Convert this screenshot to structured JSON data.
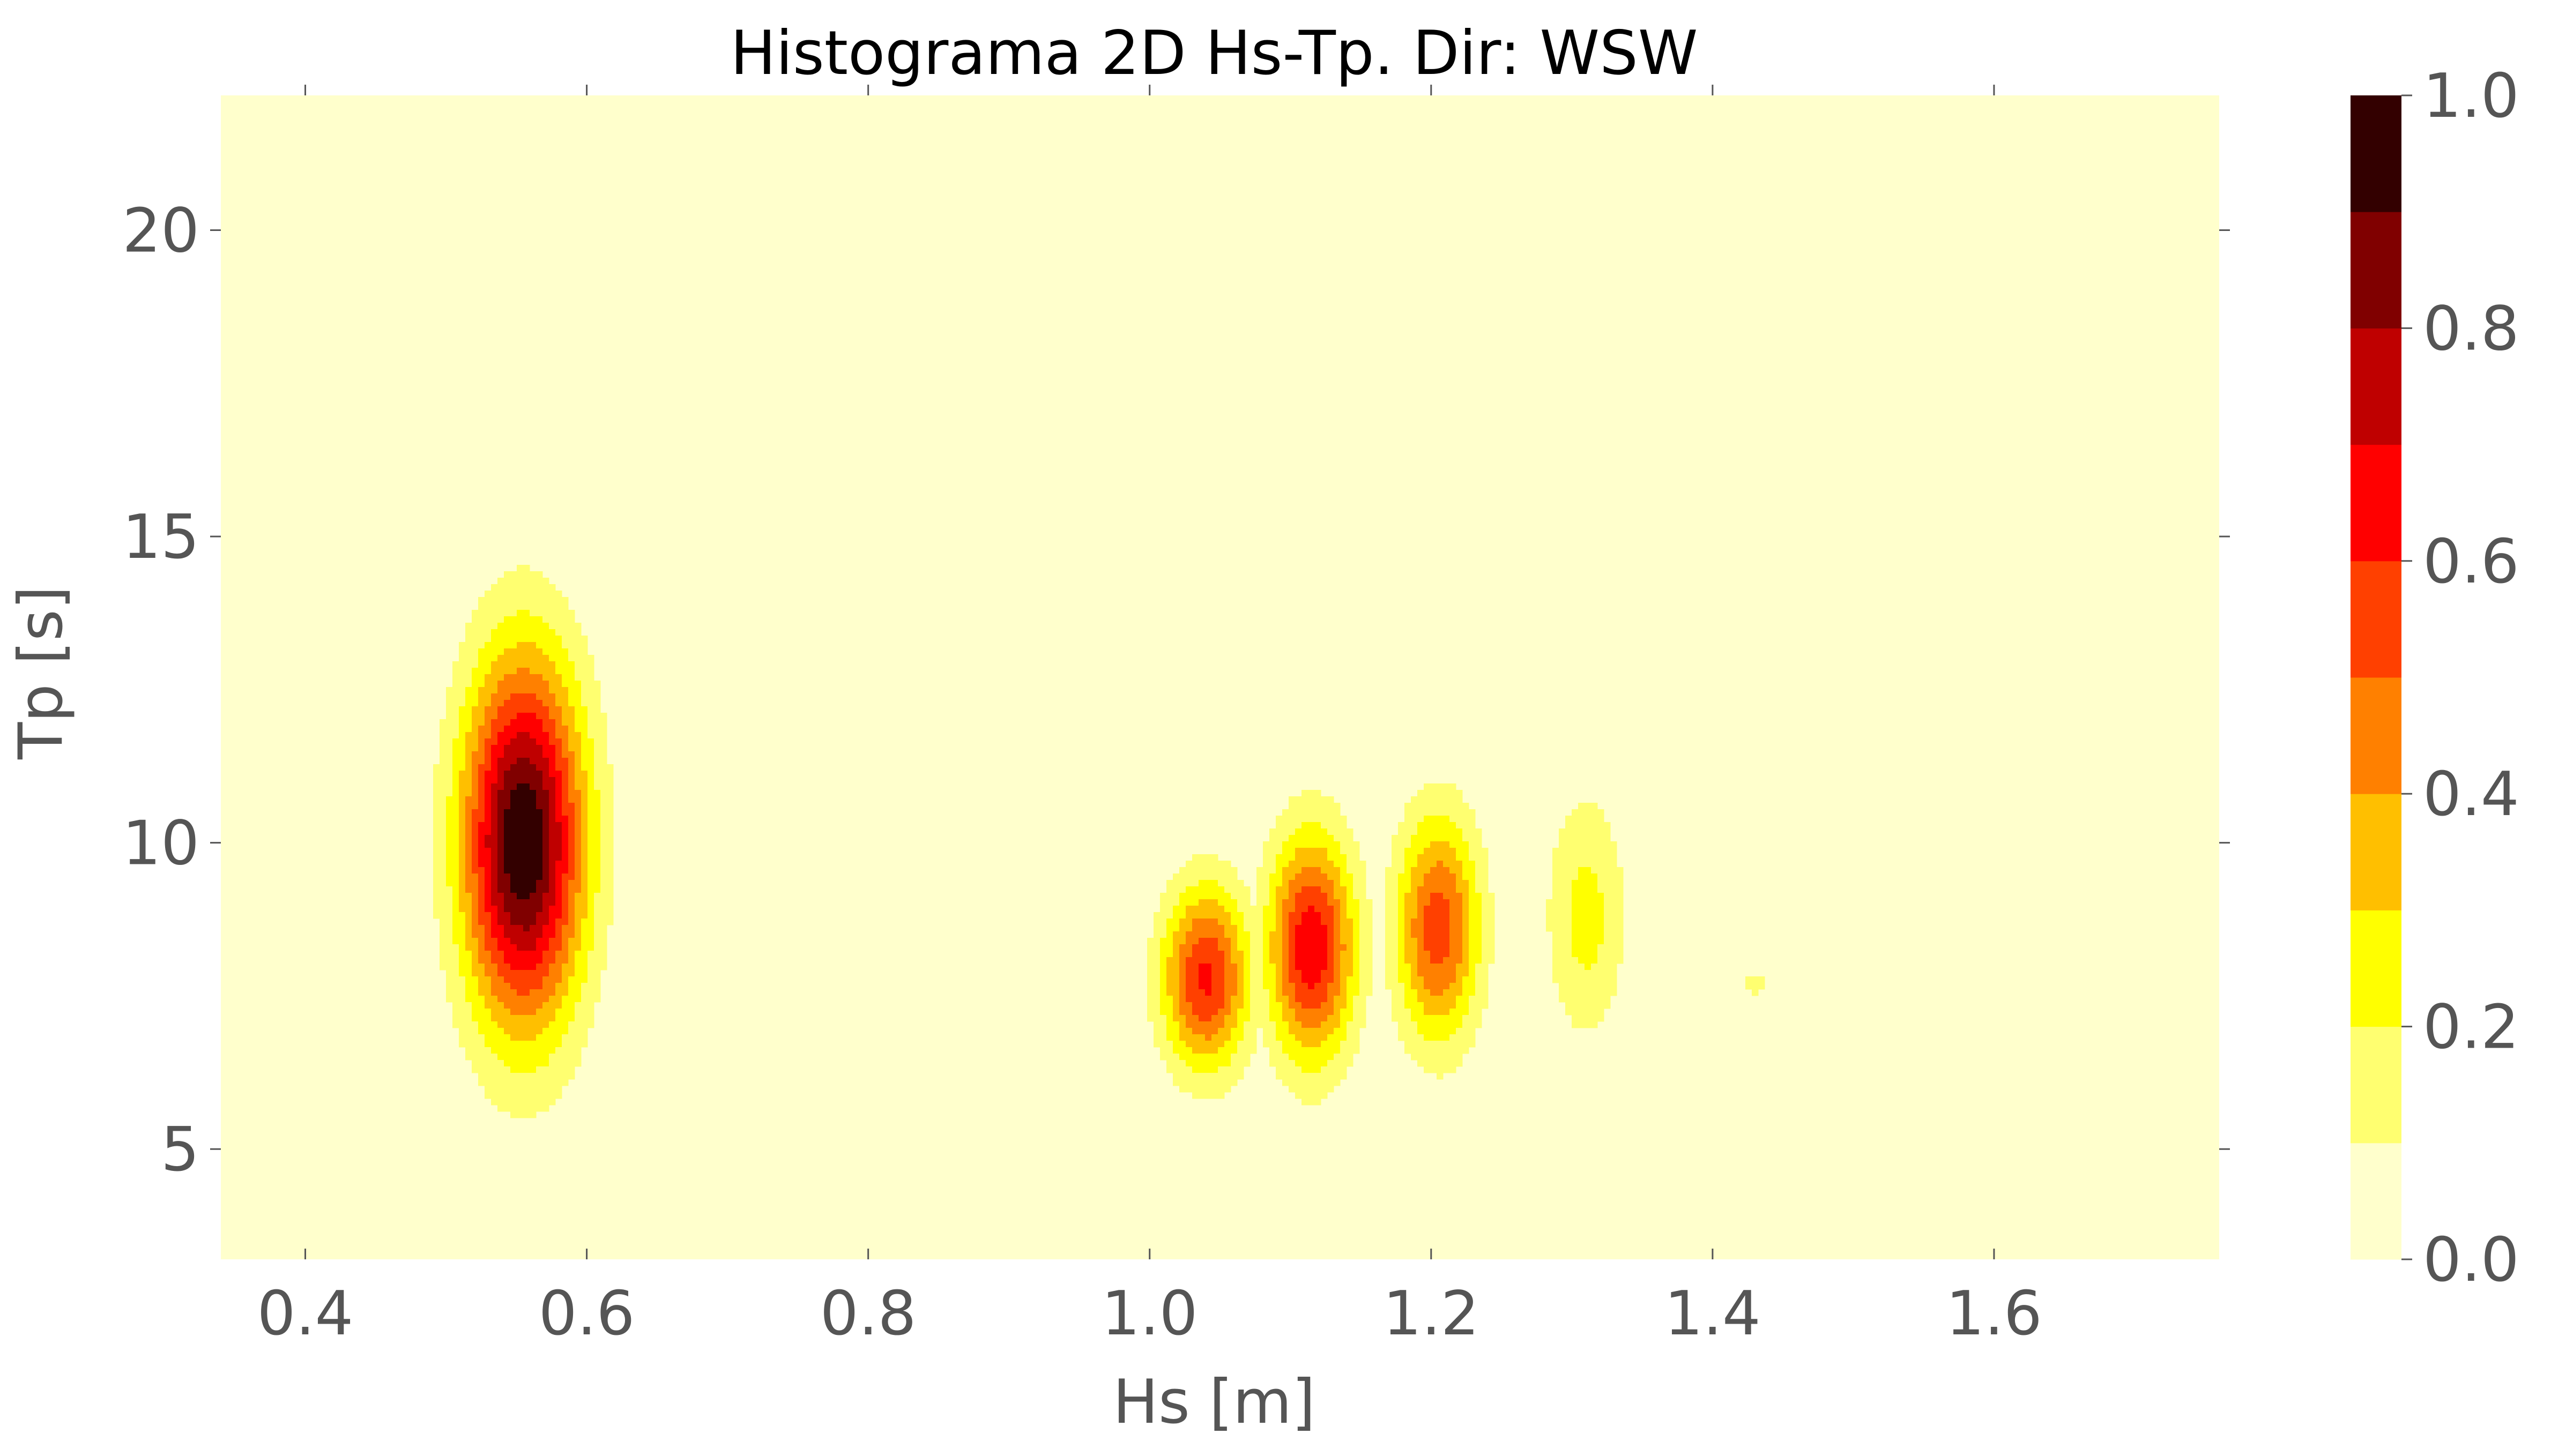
{
  "chart_data": {
    "type": "heatmap",
    "subtype": "filled-contour",
    "title": "Histograma 2D Hs-Tp. Dir: WSW",
    "xlabel": "Hs [m]",
    "ylabel": "Tp [s]",
    "xlim": [
      0.34,
      1.76
    ],
    "ylim": [
      3.2,
      22.2
    ],
    "xticks": [
      0.4,
      0.6,
      0.8,
      1.0,
      1.2,
      1.4,
      1.6
    ],
    "xtick_labels": [
      "0.4",
      "0.6",
      "0.8",
      "1.0",
      "1.2",
      "1.4",
      "1.6"
    ],
    "yticks": [
      5,
      10,
      15,
      20
    ],
    "ytick_labels": [
      "5",
      "10",
      "15",
      "20"
    ],
    "colormap": "hot_r",
    "levels": [
      0.0,
      0.1,
      0.2,
      0.3,
      0.4,
      0.5,
      0.6,
      0.7,
      0.8,
      0.9,
      1.0
    ],
    "level_colors": [
      "#ffffcc",
      "#ffff70",
      "#ffff00",
      "#ffbf00",
      "#ff8000",
      "#ff4000",
      "#ff0000",
      "#bf0000",
      "#800000",
      "#330000"
    ],
    "colorbar": {
      "ticks": [
        0.0,
        0.2,
        0.4,
        0.6,
        0.8,
        1.0
      ],
      "tick_labels": [
        "0.0",
        "0.2",
        "0.4",
        "0.6",
        "0.8",
        "1.0"
      ]
    },
    "grid": false,
    "clusters": [
      {
        "hs": 0.555,
        "tp": 10.0,
        "sigma_hs": 0.03,
        "sigma_tp": 2.1,
        "peak": 1.0
      },
      {
        "hs": 1.04,
        "tp": 7.8,
        "sigma_hs": 0.022,
        "sigma_tp": 1.05,
        "peak": 0.62
      },
      {
        "hs": 1.115,
        "tp": 8.3,
        "sigma_hs": 0.022,
        "sigma_tp": 1.3,
        "peak": 0.68
      },
      {
        "hs": 1.205,
        "tp": 8.6,
        "sigma_hs": 0.021,
        "sigma_tp": 1.3,
        "peak": 0.56
      },
      {
        "hs": 1.31,
        "tp": 8.8,
        "sigma_hs": 0.02,
        "sigma_tp": 1.4,
        "peak": 0.24
      },
      {
        "hs": 1.43,
        "tp": 7.7,
        "sigma_hs": 0.006,
        "sigma_tp": 0.18,
        "peak": 0.15
      }
    ]
  }
}
